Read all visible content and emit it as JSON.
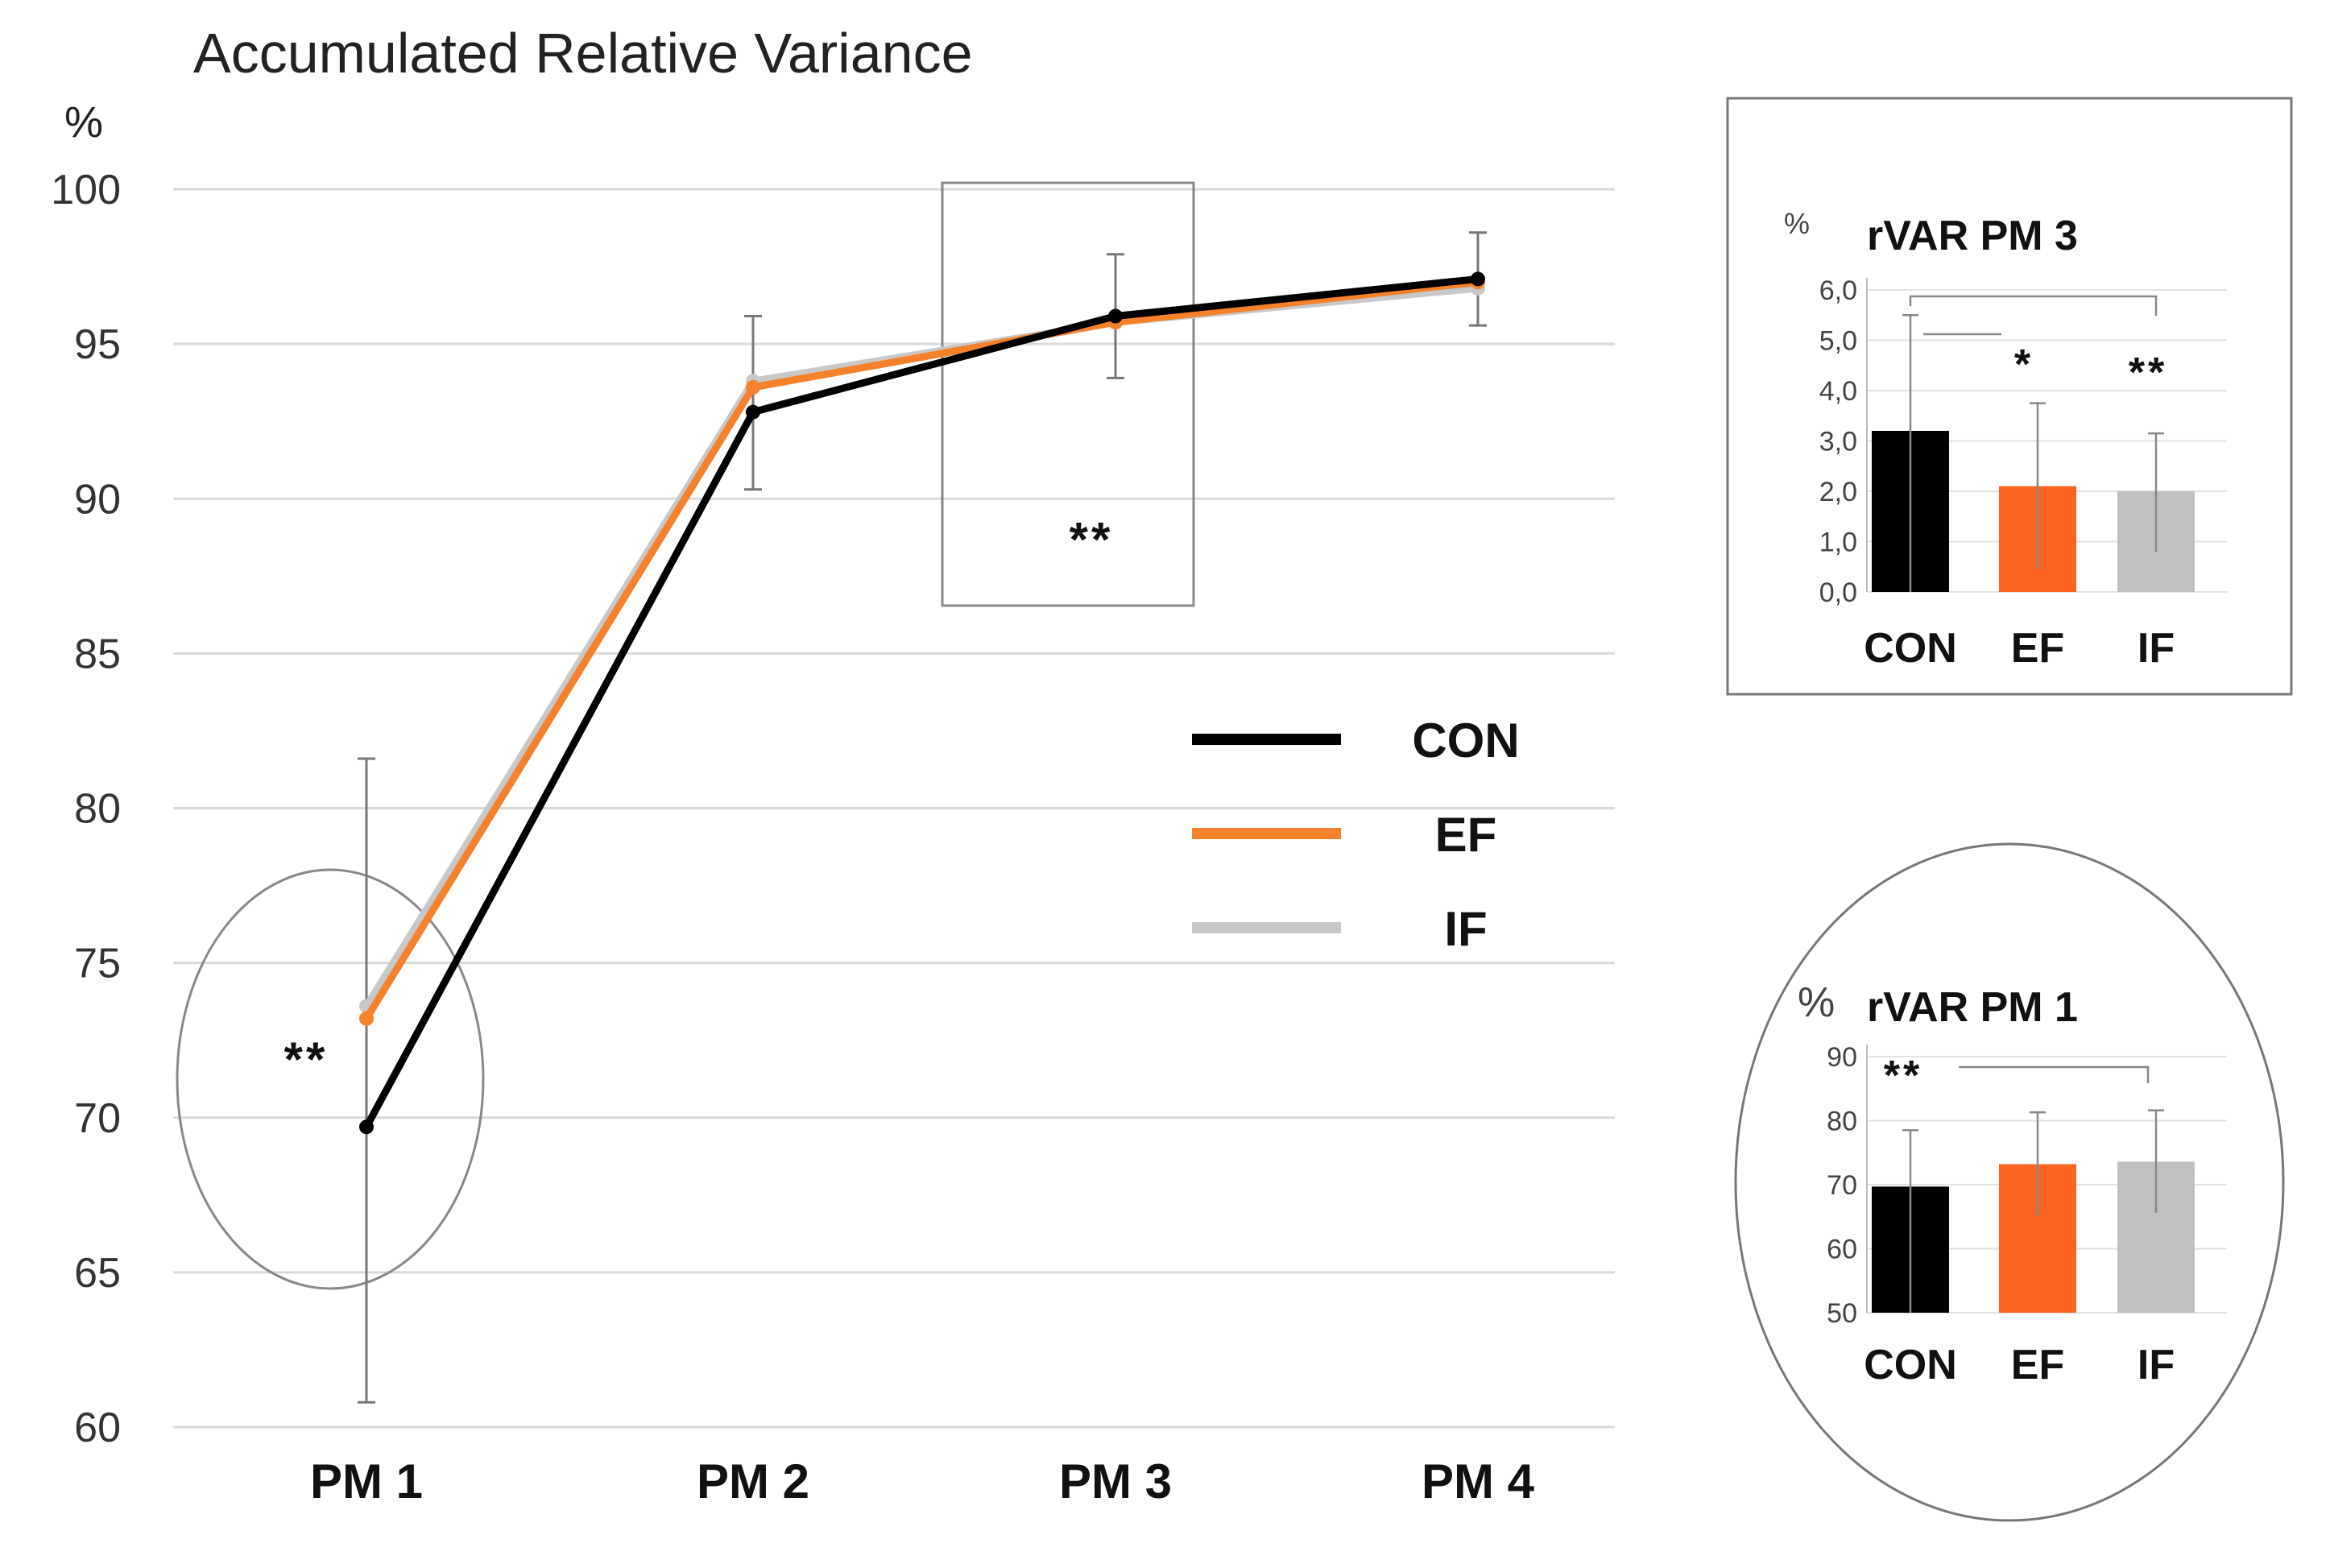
{
  "chart_data": [
    {
      "type": "line",
      "title": "Accumulated Relative Variance",
      "ylabel": "%",
      "xlabel": "",
      "categories": [
        "PM 1",
        "PM 2",
        "PM 3",
        "PM 4"
      ],
      "ylim": [
        60,
        100
      ],
      "yticks": [
        60,
        65,
        70,
        75,
        80,
        85,
        90,
        95,
        100
      ],
      "grid": true,
      "series": [
        {
          "name": "CON",
          "color": "#000000",
          "values": [
            69.7,
            92.8,
            95.9,
            97.1
          ]
        },
        {
          "name": "EF",
          "color": "#f5812a",
          "values": [
            73.2,
            93.6,
            95.7,
            97.0
          ]
        },
        {
          "name": "IF",
          "color": "#c8c8c8",
          "values": [
            73.6,
            93.8,
            95.7,
            96.8
          ]
        }
      ],
      "error_bars": [
        {
          "category": "PM 1",
          "center": 71.2,
          "low": 60.8,
          "high": 81.6
        },
        {
          "category": "PM 2",
          "center": 93.1,
          "low": 90.3,
          "high": 95.9
        },
        {
          "category": "PM 3",
          "center": 95.9,
          "low": 93.9,
          "high": 97.9
        },
        {
          "category": "PM 4",
          "center": 97.1,
          "low": 95.6,
          "high": 98.6
        }
      ],
      "annotations": [
        {
          "category": "PM 1",
          "text": "**",
          "y": 72,
          "highlight": "ellipse"
        },
        {
          "category": "PM 3",
          "text": "**",
          "y": 88.8,
          "highlight": "rectangle"
        }
      ],
      "legend": {
        "placement": "right-center",
        "entries": [
          "CON",
          "EF",
          "IF"
        ]
      }
    },
    {
      "type": "bar",
      "title": "rVAR PM 3",
      "ylabel": "%",
      "categories": [
        "CON",
        "EF",
        "IF"
      ],
      "values": [
        3.2,
        2.1,
        2.0
      ],
      "error_high": [
        5.5,
        3.75,
        3.15
      ],
      "error_low": [
        0.0,
        0.45,
        0.8
      ],
      "colors": [
        "#000000",
        "#fb6420",
        "#c0c0c0"
      ],
      "ylim": [
        0,
        6
      ],
      "yticks": [
        "0,0",
        "1,0",
        "2,0",
        "3,0",
        "4,0",
        "5,0",
        "6,0"
      ],
      "significance": [
        {
          "from": "CON",
          "to": "EF",
          "text": "*"
        },
        {
          "from": "CON",
          "to": "IF",
          "text": "**"
        }
      ],
      "frame": "rectangle"
    },
    {
      "type": "bar",
      "title": "rVAR PM 1",
      "ylabel": "%",
      "categories": [
        "CON",
        "EF",
        "IF"
      ],
      "values": [
        69.7,
        73.2,
        73.6
      ],
      "error_high": [
        78.5,
        81.3,
        81.6
      ],
      "error_low": [
        50,
        65.2,
        65.6
      ],
      "colors": [
        "#000000",
        "#fb6420",
        "#c0c0c0"
      ],
      "ylim": [
        50,
        90
      ],
      "yticks": [
        "50",
        "60",
        "70",
        "80",
        "90"
      ],
      "significance": [
        {
          "from": "CON",
          "to": "IF",
          "text": "**"
        }
      ],
      "frame": "ellipse"
    }
  ]
}
